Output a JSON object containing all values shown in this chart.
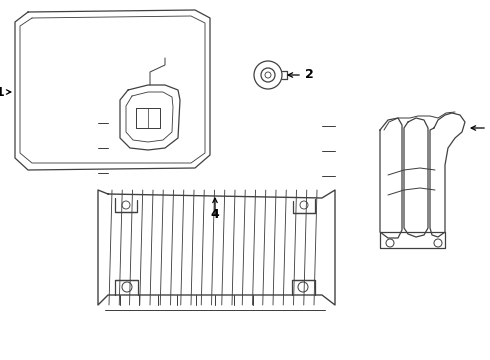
{
  "bg_color": "#ffffff",
  "line_color": "#404040",
  "label_color": "#000000",
  "figsize": [
    4.9,
    3.6
  ],
  "dpi": 100
}
